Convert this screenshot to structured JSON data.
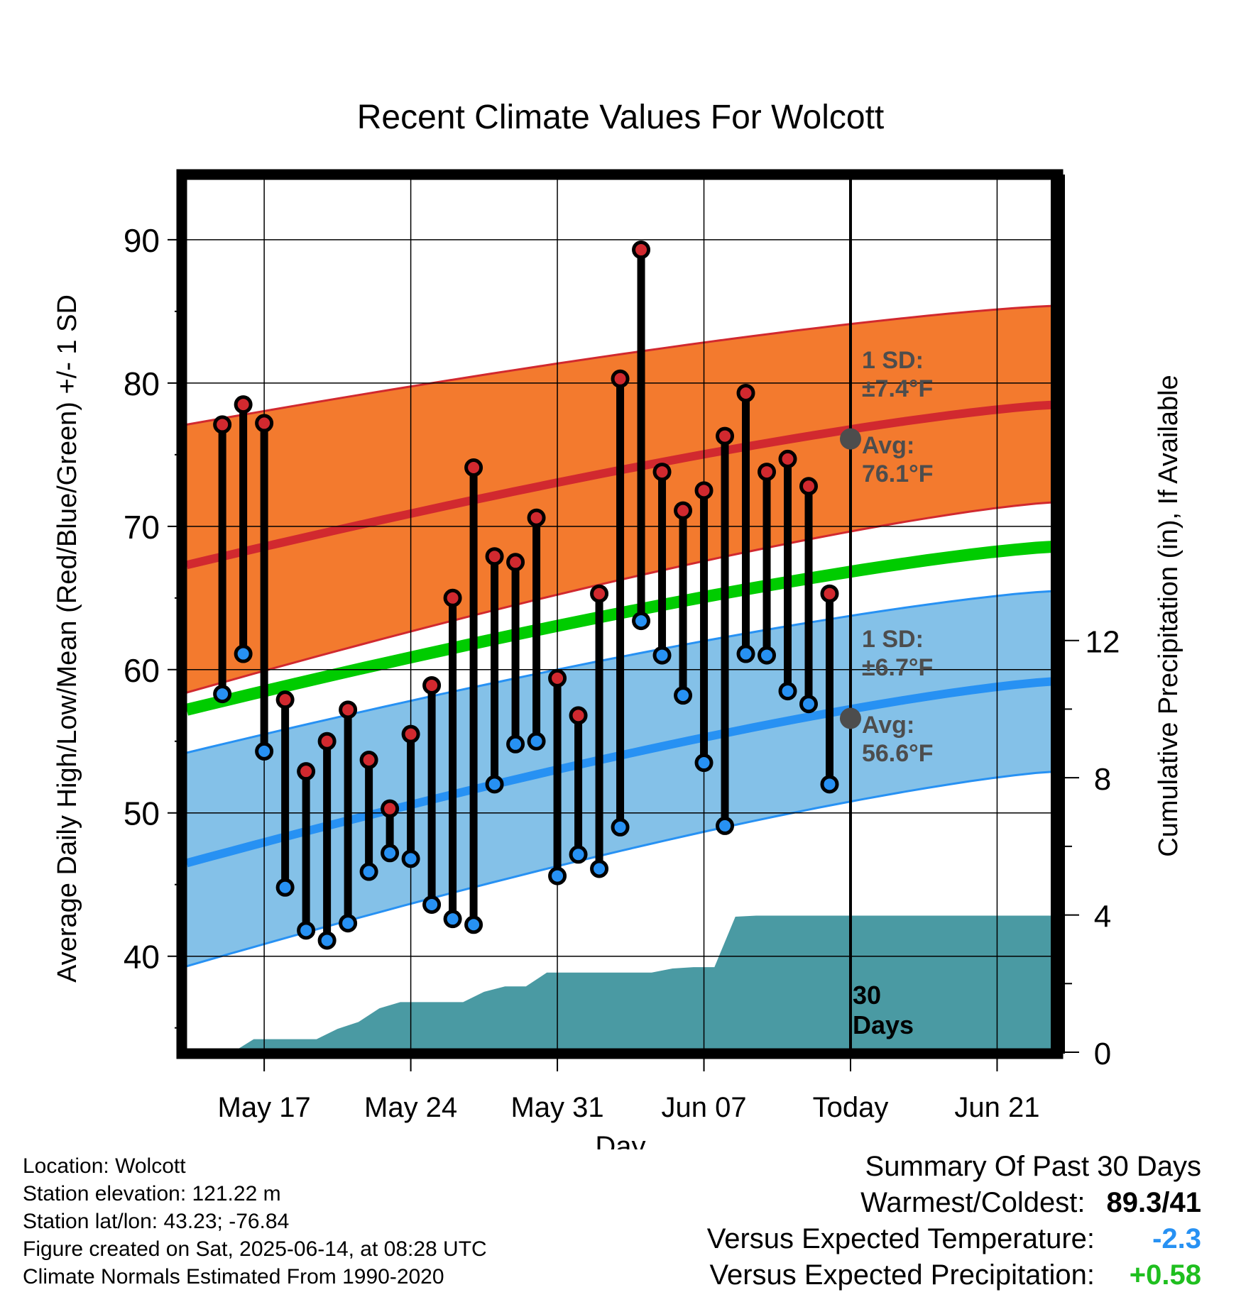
{
  "chart_data": {
    "type": "line",
    "title": "Recent Climate Values For Wolcott",
    "xlabel": "Day",
    "ylabel": "Average Daily High/Low/Mean (Red/Blue/Green) +/- 1 SD",
    "ylabel_right": "Cumulative Precipitation (in), If Available",
    "x_ticks": [
      "May 17",
      "May 24",
      "May 31",
      "Jun 07",
      "Today",
      "Jun 21"
    ],
    "y_ticks": [
      40,
      50,
      60,
      70,
      80,
      90
    ],
    "y2_ticks": [
      0,
      4,
      8,
      12
    ],
    "ylim": [
      33.3,
      94.6
    ],
    "y2lim": [
      0,
      25.6
    ],
    "xlim": [
      "May 13.3",
      "Jun 23.9"
    ],
    "grid": true,
    "today_label": "Today",
    "days_label_1": "30",
    "days_label_2": "Days",
    "normals": {
      "high_avg": {
        "start": 67.3,
        "end": 78.5
      },
      "high_upper": {
        "start": 77.1,
        "end": 85.4
      },
      "high_lower": {
        "start": 58.4,
        "end": 71.7
      },
      "mean_avg": {
        "start": 57.2,
        "end": 68.6
      },
      "low_avg": {
        "start": 46.5,
        "end": 59.2
      },
      "low_upper": {
        "start": 54.2,
        "end": 65.5
      },
      "low_lower": {
        "start": 39.3,
        "end": 52.9
      },
      "x_start": "May 13.3",
      "x_end": "Jun 23.9"
    },
    "annotations": {
      "high_sd_line1": "1 SD:",
      "high_sd_line2": "±7.4°F",
      "high_avg_line1": "Avg:",
      "high_avg_line2": "76.1°F",
      "high_avg_value": 76.1,
      "low_sd_line1": "1 SD:",
      "low_sd_line2": "±6.7°F",
      "low_avg_line1": "Avg:",
      "low_avg_line2": "56.6°F",
      "low_avg_value": 56.6
    },
    "daily_temps": {
      "days": [
        "May 15",
        "May 16",
        "May 17",
        "May 18",
        "May 19",
        "May 20",
        "May 21",
        "May 22",
        "May 23",
        "May 24",
        "May 25",
        "May 26",
        "May 27",
        "May 28",
        "May 29",
        "May 30",
        "May 31",
        "Jun 01",
        "Jun 02",
        "Jun 03",
        "Jun 04",
        "Jun 05",
        "Jun 06",
        "Jun 07",
        "Jun 08",
        "Jun 09",
        "Jun 10",
        "Jun 11",
        "Jun 12",
        "Jun 13",
        "Jun 14"
      ],
      "high": [
        77.1,
        78.5,
        77.2,
        57.9,
        52.9,
        55.0,
        57.2,
        53.7,
        50.3,
        55.5,
        58.9,
        65.0,
        74.1,
        67.9,
        67.5,
        70.6,
        59.4,
        56.8,
        65.3,
        80.3,
        89.3,
        73.8,
        71.1,
        72.5,
        76.3,
        79.3,
        73.8,
        74.7,
        72.8,
        65.3,
        null
      ],
      "low": [
        58.3,
        61.1,
        54.3,
        44.8,
        41.8,
        41.1,
        42.3,
        45.9,
        47.2,
        46.8,
        43.6,
        42.6,
        42.2,
        52.0,
        54.8,
        55.0,
        45.6,
        47.1,
        46.1,
        49.0,
        63.4,
        61.0,
        58.2,
        53.5,
        49.1,
        61.1,
        61.0,
        58.5,
        57.6,
        52.0,
        null
      ]
    },
    "precipitation": {
      "x": [
        "May 14.5",
        "May 15.5",
        "May 16.5",
        "May 17.5",
        "May 18.5",
        "May 19.5",
        "May 20.5",
        "May 21.5",
        "May 22.5",
        "May 23.5",
        "May 24.5",
        "May 25.5",
        "May 26.5",
        "May 27.5",
        "May 28.5",
        "May 29.5",
        "May 30.5",
        "May 31.5",
        "Jun 01.5",
        "Jun 02.5",
        "Jun 03.5",
        "Jun 04.5",
        "Jun 05.5",
        "Jun 06.5",
        "Jun 07.5",
        "Jun 08.5",
        "Jun 09.5",
        "Jun 10.5",
        "Jun 11.5",
        "Jun 12.5",
        "Jun 13.5",
        "Jun 23.9"
      ],
      "cumulative_in": [
        0.0,
        0.0,
        0.38,
        0.38,
        0.38,
        0.38,
        0.68,
        0.88,
        1.28,
        1.46,
        1.46,
        1.46,
        1.46,
        1.76,
        1.92,
        1.92,
        2.32,
        2.32,
        2.32,
        2.32,
        2.32,
        2.32,
        2.44,
        2.48,
        2.48,
        3.95,
        3.98,
        3.98,
        3.98,
        3.98,
        3.98,
        3.98
      ]
    },
    "colors": {
      "high": "#d1292f",
      "high_band": "#f37a2e",
      "mean": "#00cc00",
      "low": "#2791f3",
      "low_band": "#84c1e8",
      "precip": "#4a9aa3",
      "avg_marker": "#4d4d4d"
    }
  },
  "footer": {
    "location": "Location: Wolcott",
    "elevation": "Station elevation: 121.22 m",
    "latlon": "Station lat/lon: 43.23; -76.84",
    "created": "Figure created on Sat, 2025-06-14, at 08:28 UTC",
    "normals": "Climate Normals Estimated From 1990-2020"
  },
  "summary": {
    "title": "Summary Of Past 30 Days",
    "warmest_label": "Warmest/Coldest:",
    "warmest_value": "89.3/41",
    "temp_label": "Versus Expected Temperature:",
    "temp_value": "-2.3",
    "temp_color": "#2791f3",
    "precip_label": "Versus Expected Precipitation:",
    "precip_value": "+0.58",
    "precip_color": "#1fbf1f"
  }
}
